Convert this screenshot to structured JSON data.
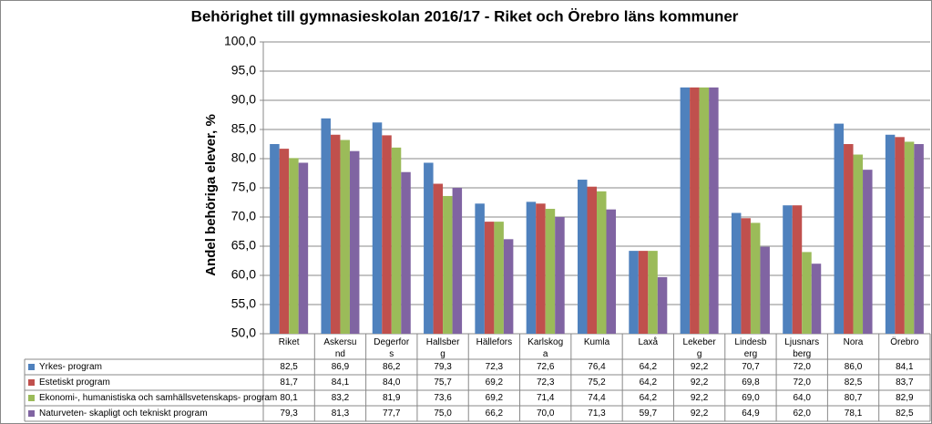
{
  "chart_data": {
    "type": "bar",
    "title": "Behörighet till gymnasieskolan 2016/17 - Riket och Örebro läns kommuner",
    "y_label": "Andel behöriga elever, %",
    "categories": [
      "Riket",
      "Askersund",
      "Degerfors",
      "Hallsberg",
      "Hällefors",
      "Karlskoga",
      "Kumla",
      "Laxå",
      "Lekeberg",
      "Lindesberg",
      "Ljusnarsberg",
      "Nora",
      "Örebro"
    ],
    "series": [
      {
        "name": "Yrkes- program",
        "color": "#4f81bd",
        "values": [
          82.5,
          86.9,
          86.2,
          79.3,
          72.3,
          72.6,
          76.4,
          64.2,
          92.2,
          70.7,
          72.0,
          86.0,
          84.1
        ],
        "value_labels": [
          "82,5",
          "86,9",
          "86,2",
          "79,3",
          "72,3",
          "72,6",
          "76,4",
          "64,2",
          "92,2",
          "70,7",
          "72,0",
          "86,0",
          "84,1"
        ]
      },
      {
        "name": "Estetiskt program",
        "color": "#c0504d",
        "values": [
          81.7,
          84.1,
          84.0,
          75.7,
          69.2,
          72.3,
          75.2,
          64.2,
          92.2,
          69.8,
          72.0,
          82.5,
          83.7
        ],
        "value_labels": [
          "81,7",
          "84,1",
          "84,0",
          "75,7",
          "69,2",
          "72,3",
          "75,2",
          "64,2",
          "92,2",
          "69,8",
          "72,0",
          "82,5",
          "83,7"
        ]
      },
      {
        "name": "Ekonomi-, humanistiska och samhällsvetenskaps- program",
        "color": "#9bbb59",
        "values": [
          80.1,
          83.2,
          81.9,
          73.6,
          69.2,
          71.4,
          74.4,
          64.2,
          92.2,
          69.0,
          64.0,
          80.7,
          82.9
        ],
        "value_labels": [
          "80,1",
          "83,2",
          "81,9",
          "73,6",
          "69,2",
          "71,4",
          "74,4",
          "64,2",
          "92,2",
          "69,0",
          "64,0",
          "80,7",
          "82,9"
        ]
      },
      {
        "name": "Naturveten- skapligt och tekniskt program",
        "color": "#8064a2",
        "values": [
          79.3,
          81.3,
          77.7,
          75.0,
          66.2,
          70.0,
          71.3,
          59.7,
          92.2,
          64.9,
          62.0,
          78.1,
          82.5
        ],
        "value_labels": [
          "79,3",
          "81,3",
          "77,7",
          "75,0",
          "66,2",
          "70,0",
          "71,3",
          "59,7",
          "92,2",
          "64,9",
          "62,0",
          "78,1",
          "82,5"
        ]
      }
    ],
    "ylim": [
      50,
      100
    ],
    "yticks": [
      {
        "value": 50,
        "label": "50,0"
      },
      {
        "value": 55,
        "label": "55,0"
      },
      {
        "value": 60,
        "label": "60,0"
      },
      {
        "value": 65,
        "label": "65,0"
      },
      {
        "value": 70,
        "label": "70,0"
      },
      {
        "value": 75,
        "label": "75,0"
      },
      {
        "value": 80,
        "label": "80,0"
      },
      {
        "value": 85,
        "label": "85,0"
      },
      {
        "value": 90,
        "label": "90,0"
      },
      {
        "value": 95,
        "label": "95,0"
      },
      {
        "value": 100,
        "label": "100,0"
      }
    ],
    "grid": true
  }
}
